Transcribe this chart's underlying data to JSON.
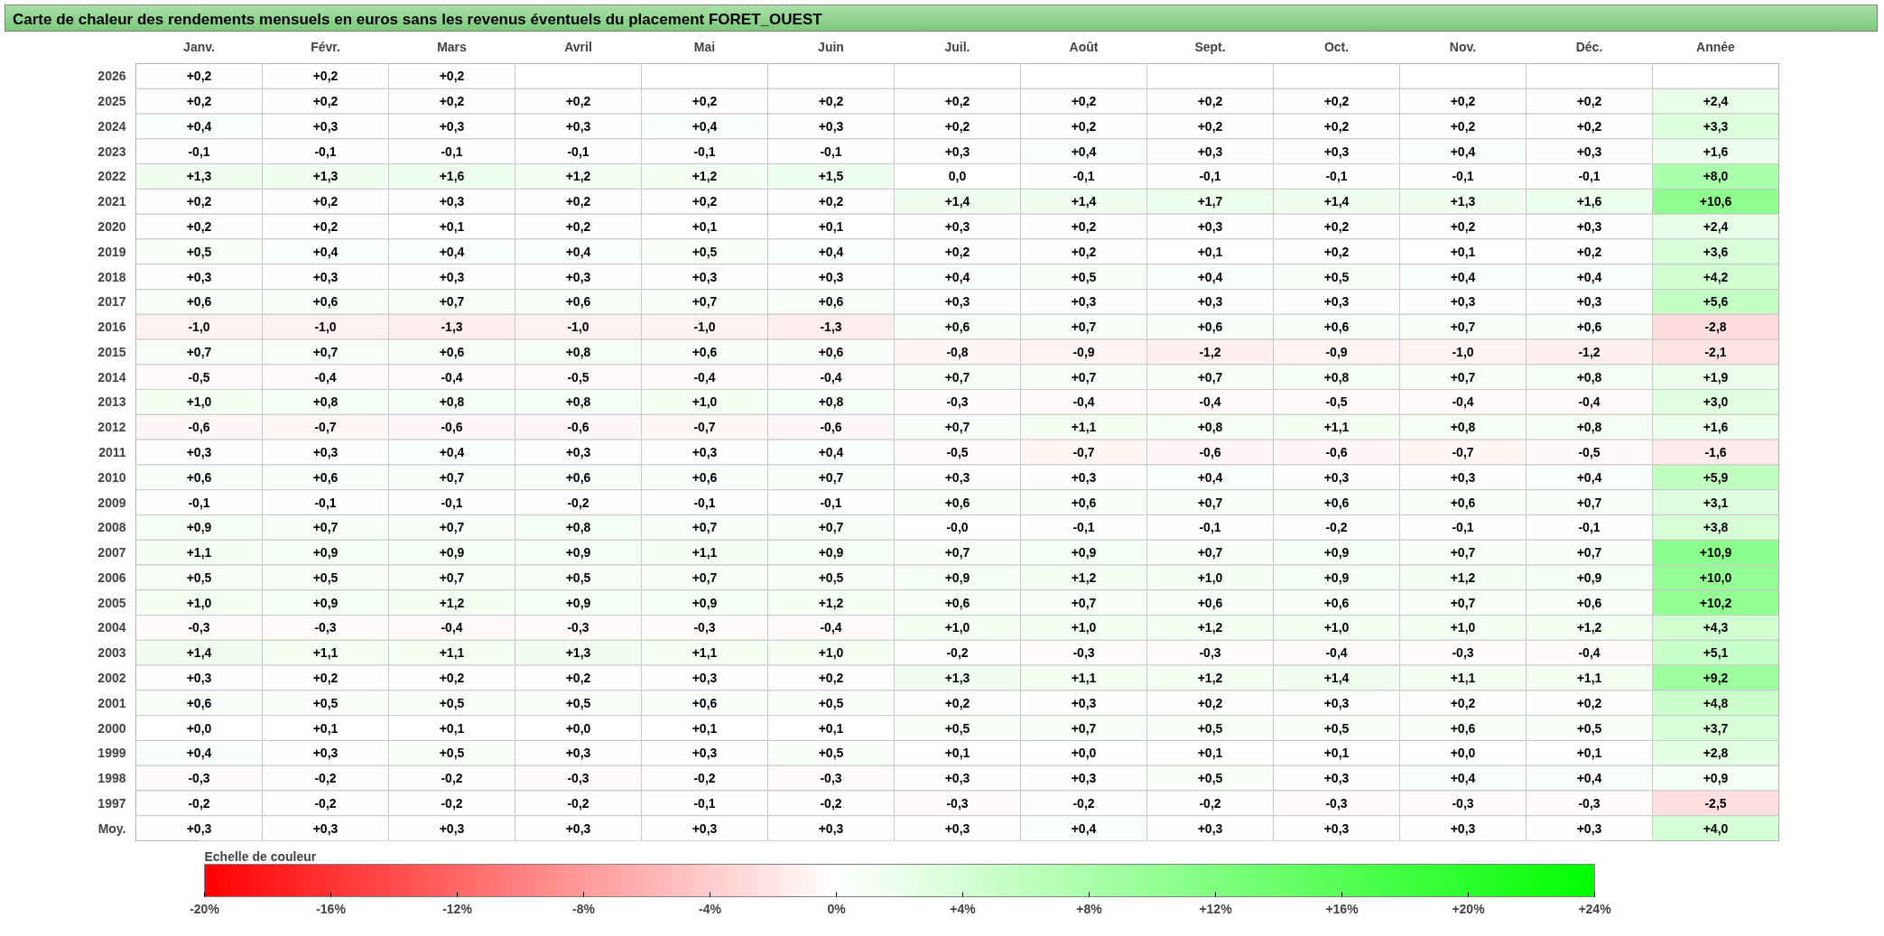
{
  "chart_data": {
    "type": "heatmap",
    "title": "Carte de chaleur des rendements mensuels en euros sans les revenus éventuels du placement FORET_OUEST",
    "categories": [
      "Janv.",
      "Févr.",
      "Mars",
      "Avril",
      "Mai",
      "Juin",
      "Juil.",
      "Août",
      "Sept.",
      "Oct.",
      "Nov.",
      "Déc.",
      "Année"
    ],
    "y_categories": [
      "2026",
      "2025",
      "2024",
      "2023",
      "2022",
      "2021",
      "2020",
      "2019",
      "2018",
      "2017",
      "2016",
      "2015",
      "2014",
      "2013",
      "2012",
      "2011",
      "2010",
      "2009",
      "2008",
      "2007",
      "2006",
      "2005",
      "2004",
      "2003",
      "2002",
      "2001",
      "2000",
      "1999",
      "1998",
      "1997",
      "Moy."
    ],
    "cells": [
      [
        0.2,
        0.2,
        0.2,
        null,
        null,
        null,
        null,
        null,
        null,
        null,
        null,
        null,
        null
      ],
      [
        0.2,
        0.2,
        0.2,
        0.2,
        0.2,
        0.2,
        0.2,
        0.2,
        0.2,
        0.2,
        0.2,
        0.2,
        2.4
      ],
      [
        0.4,
        0.3,
        0.3,
        0.3,
        0.4,
        0.3,
        0.2,
        0.2,
        0.2,
        0.2,
        0.2,
        0.2,
        3.3
      ],
      [
        -0.1,
        -0.1,
        -0.1,
        -0.1,
        -0.1,
        -0.1,
        0.3,
        0.4,
        0.3,
        0.3,
        0.4,
        0.3,
        1.6
      ],
      [
        1.3,
        1.3,
        1.6,
        1.2,
        1.2,
        1.5,
        0.0,
        -0.1,
        -0.1,
        -0.1,
        -0.1,
        -0.1,
        8.0
      ],
      [
        0.2,
        0.2,
        0.3,
        0.2,
        0.2,
        0.2,
        1.4,
        1.4,
        1.7,
        1.4,
        1.3,
        1.6,
        10.6
      ],
      [
        0.2,
        0.2,
        0.1,
        0.2,
        0.1,
        0.1,
        0.3,
        0.2,
        0.3,
        0.2,
        0.2,
        0.3,
        2.4
      ],
      [
        0.5,
        0.4,
        0.4,
        0.4,
        0.5,
        0.4,
        0.2,
        0.2,
        0.1,
        0.2,
        0.1,
        0.2,
        3.6
      ],
      [
        0.3,
        0.3,
        0.3,
        0.3,
        0.3,
        0.3,
        0.4,
        0.5,
        0.4,
        0.5,
        0.4,
        0.4,
        4.2
      ],
      [
        0.6,
        0.6,
        0.7,
        0.6,
        0.7,
        0.6,
        0.3,
        0.3,
        0.3,
        0.3,
        0.3,
        0.3,
        5.6
      ],
      [
        -1.0,
        -1.0,
        -1.3,
        -1.0,
        -1.0,
        -1.3,
        0.6,
        0.7,
        0.6,
        0.6,
        0.7,
        0.6,
        -2.8
      ],
      [
        0.7,
        0.7,
        0.6,
        0.8,
        0.6,
        0.6,
        -0.8,
        -0.9,
        -1.2,
        -0.9,
        -1.0,
        -1.2,
        -2.1
      ],
      [
        -0.5,
        -0.4,
        -0.4,
        -0.5,
        -0.4,
        -0.4,
        0.7,
        0.7,
        0.7,
        0.8,
        0.7,
        0.8,
        1.9
      ],
      [
        1.0,
        0.8,
        0.8,
        0.8,
        1.0,
        0.8,
        -0.3,
        -0.4,
        -0.4,
        -0.5,
        -0.4,
        -0.4,
        3.0
      ],
      [
        -0.6,
        -0.7,
        -0.6,
        -0.6,
        -0.7,
        -0.6,
        0.7,
        1.1,
        0.8,
        1.1,
        0.8,
        0.8,
        1.6
      ],
      [
        0.3,
        0.3,
        0.4,
        0.3,
        0.3,
        0.4,
        -0.5,
        -0.7,
        -0.6,
        -0.6,
        -0.7,
        -0.5,
        -1.6
      ],
      [
        0.6,
        0.6,
        0.7,
        0.6,
        0.6,
        0.7,
        0.3,
        0.3,
        0.4,
        0.3,
        0.3,
        0.4,
        5.9
      ],
      [
        -0.1,
        -0.1,
        -0.1,
        -0.2,
        -0.1,
        -0.1,
        0.6,
        0.6,
        0.7,
        0.6,
        0.6,
        0.7,
        3.1
      ],
      [
        0.9,
        0.7,
        0.7,
        0.8,
        0.7,
        0.7,
        0.0,
        -0.1,
        -0.1,
        -0.2,
        -0.1,
        -0.1,
        3.8
      ],
      [
        1.1,
        0.9,
        0.9,
        0.9,
        1.1,
        0.9,
        0.7,
        0.9,
        0.7,
        0.9,
        0.7,
        0.7,
        10.9
      ],
      [
        0.5,
        0.5,
        0.7,
        0.5,
        0.7,
        0.5,
        0.9,
        1.2,
        1.0,
        0.9,
        1.2,
        0.9,
        10.0
      ],
      [
        1.0,
        0.9,
        1.2,
        0.9,
        0.9,
        1.2,
        0.6,
        0.7,
        0.6,
        0.6,
        0.7,
        0.6,
        10.2
      ],
      [
        -0.3,
        -0.3,
        -0.4,
        -0.3,
        -0.3,
        -0.4,
        1.0,
        1.0,
        1.2,
        1.0,
        1.0,
        1.2,
        4.3
      ],
      [
        1.4,
        1.1,
        1.1,
        1.3,
        1.1,
        1.0,
        -0.2,
        -0.3,
        -0.3,
        -0.4,
        -0.3,
        -0.4,
        5.1
      ],
      [
        0.3,
        0.2,
        0.2,
        0.2,
        0.3,
        0.2,
        1.3,
        1.1,
        1.2,
        1.4,
        1.1,
        1.1,
        9.2
      ],
      [
        0.6,
        0.5,
        0.5,
        0.5,
        0.6,
        0.5,
        0.2,
        0.3,
        0.2,
        0.3,
        0.2,
        0.2,
        4.8
      ],
      [
        0.0,
        0.1,
        0.1,
        0.0,
        0.1,
        0.1,
        0.5,
        0.7,
        0.5,
        0.5,
        0.6,
        0.5,
        3.7
      ],
      [
        0.4,
        0.3,
        0.5,
        0.3,
        0.3,
        0.5,
        0.1,
        0.0,
        0.1,
        0.1,
        0.0,
        0.1,
        2.8
      ],
      [
        -0.3,
        -0.2,
        -0.2,
        -0.3,
        -0.2,
        -0.3,
        0.3,
        0.3,
        0.5,
        0.3,
        0.4,
        0.4,
        0.9
      ],
      [
        -0.2,
        -0.2,
        -0.2,
        -0.2,
        -0.1,
        -0.2,
        -0.3,
        -0.2,
        -0.2,
        -0.3,
        -0.3,
        -0.3,
        -2.5
      ],
      [
        0.3,
        0.3,
        0.3,
        0.3,
        0.3,
        0.3,
        0.3,
        0.4,
        0.3,
        0.3,
        0.3,
        0.3,
        4.0
      ]
    ],
    "cell_labels": [
      [
        "+0,2",
        "+0,2",
        "+0,2",
        null,
        null,
        null,
        null,
        null,
        null,
        null,
        null,
        null,
        null
      ],
      [
        "+0,2",
        "+0,2",
        "+0,2",
        "+0,2",
        "+0,2",
        "+0,2",
        "+0,2",
        "+0,2",
        "+0,2",
        "+0,2",
        "+0,2",
        "+0,2",
        "+2,4"
      ],
      [
        "+0,4",
        "+0,3",
        "+0,3",
        "+0,3",
        "+0,4",
        "+0,3",
        "+0,2",
        "+0,2",
        "+0,2",
        "+0,2",
        "+0,2",
        "+0,2",
        "+3,3"
      ],
      [
        "-0,1",
        "-0,1",
        "-0,1",
        "-0,1",
        "-0,1",
        "-0,1",
        "+0,3",
        "+0,4",
        "+0,3",
        "+0,3",
        "+0,4",
        "+0,3",
        "+1,6"
      ],
      [
        "+1,3",
        "+1,3",
        "+1,6",
        "+1,2",
        "+1,2",
        "+1,5",
        "0,0",
        "-0,1",
        "-0,1",
        "-0,1",
        "-0,1",
        "-0,1",
        "+8,0"
      ],
      [
        "+0,2",
        "+0,2",
        "+0,3",
        "+0,2",
        "+0,2",
        "+0,2",
        "+1,4",
        "+1,4",
        "+1,7",
        "+1,4",
        "+1,3",
        "+1,6",
        "+10,6"
      ],
      [
        "+0,2",
        "+0,2",
        "+0,1",
        "+0,2",
        "+0,1",
        "+0,1",
        "+0,3",
        "+0,2",
        "+0,3",
        "+0,2",
        "+0,2",
        "+0,3",
        "+2,4"
      ],
      [
        "+0,5",
        "+0,4",
        "+0,4",
        "+0,4",
        "+0,5",
        "+0,4",
        "+0,2",
        "+0,2",
        "+0,1",
        "+0,2",
        "+0,1",
        "+0,2",
        "+3,6"
      ],
      [
        "+0,3",
        "+0,3",
        "+0,3",
        "+0,3",
        "+0,3",
        "+0,3",
        "+0,4",
        "+0,5",
        "+0,4",
        "+0,5",
        "+0,4",
        "+0,4",
        "+4,2"
      ],
      [
        "+0,6",
        "+0,6",
        "+0,7",
        "+0,6",
        "+0,7",
        "+0,6",
        "+0,3",
        "+0,3",
        "+0,3",
        "+0,3",
        "+0,3",
        "+0,3",
        "+5,6"
      ],
      [
        "-1,0",
        "-1,0",
        "-1,3",
        "-1,0",
        "-1,0",
        "-1,3",
        "+0,6",
        "+0,7",
        "+0,6",
        "+0,6",
        "+0,7",
        "+0,6",
        "-2,8"
      ],
      [
        "+0,7",
        "+0,7",
        "+0,6",
        "+0,8",
        "+0,6",
        "+0,6",
        "-0,8",
        "-0,9",
        "-1,2",
        "-0,9",
        "-1,0",
        "-1,2",
        "-2,1"
      ],
      [
        "-0,5",
        "-0,4",
        "-0,4",
        "-0,5",
        "-0,4",
        "-0,4",
        "+0,7",
        "+0,7",
        "+0,7",
        "+0,8",
        "+0,7",
        "+0,8",
        "+1,9"
      ],
      [
        "+1,0",
        "+0,8",
        "+0,8",
        "+0,8",
        "+1,0",
        "+0,8",
        "-0,3",
        "-0,4",
        "-0,4",
        "-0,5",
        "-0,4",
        "-0,4",
        "+3,0"
      ],
      [
        "-0,6",
        "-0,7",
        "-0,6",
        "-0,6",
        "-0,7",
        "-0,6",
        "+0,7",
        "+1,1",
        "+0,8",
        "+1,1",
        "+0,8",
        "+0,8",
        "+1,6"
      ],
      [
        "+0,3",
        "+0,3",
        "+0,4",
        "+0,3",
        "+0,3",
        "+0,4",
        "-0,5",
        "-0,7",
        "-0,6",
        "-0,6",
        "-0,7",
        "-0,5",
        "-1,6"
      ],
      [
        "+0,6",
        "+0,6",
        "+0,7",
        "+0,6",
        "+0,6",
        "+0,7",
        "+0,3",
        "+0,3",
        "+0,4",
        "+0,3",
        "+0,3",
        "+0,4",
        "+5,9"
      ],
      [
        "-0,1",
        "-0,1",
        "-0,1",
        "-0,2",
        "-0,1",
        "-0,1",
        "+0,6",
        "+0,6",
        "+0,7",
        "+0,6",
        "+0,6",
        "+0,7",
        "+3,1"
      ],
      [
        "+0,9",
        "+0,7",
        "+0,7",
        "+0,8",
        "+0,7",
        "+0,7",
        "-0,0",
        "-0,1",
        "-0,1",
        "-0,2",
        "-0,1",
        "-0,1",
        "+3,8"
      ],
      [
        "+1,1",
        "+0,9",
        "+0,9",
        "+0,9",
        "+1,1",
        "+0,9",
        "+0,7",
        "+0,9",
        "+0,7",
        "+0,9",
        "+0,7",
        "+0,7",
        "+10,9"
      ],
      [
        "+0,5",
        "+0,5",
        "+0,7",
        "+0,5",
        "+0,7",
        "+0,5",
        "+0,9",
        "+1,2",
        "+1,0",
        "+0,9",
        "+1,2",
        "+0,9",
        "+10,0"
      ],
      [
        "+1,0",
        "+0,9",
        "+1,2",
        "+0,9",
        "+0,9",
        "+1,2",
        "+0,6",
        "+0,7",
        "+0,6",
        "+0,6",
        "+0,7",
        "+0,6",
        "+10,2"
      ],
      [
        "-0,3",
        "-0,3",
        "-0,4",
        "-0,3",
        "-0,3",
        "-0,4",
        "+1,0",
        "+1,0",
        "+1,2",
        "+1,0",
        "+1,0",
        "+1,2",
        "+4,3"
      ],
      [
        "+1,4",
        "+1,1",
        "+1,1",
        "+1,3",
        "+1,1",
        "+1,0",
        "-0,2",
        "-0,3",
        "-0,3",
        "-0,4",
        "-0,3",
        "-0,4",
        "+5,1"
      ],
      [
        "+0,3",
        "+0,2",
        "+0,2",
        "+0,2",
        "+0,3",
        "+0,2",
        "+1,3",
        "+1,1",
        "+1,2",
        "+1,4",
        "+1,1",
        "+1,1",
        "+9,2"
      ],
      [
        "+0,6",
        "+0,5",
        "+0,5",
        "+0,5",
        "+0,6",
        "+0,5",
        "+0,2",
        "+0,3",
        "+0,2",
        "+0,3",
        "+0,2",
        "+0,2",
        "+4,8"
      ],
      [
        "+0,0",
        "+0,1",
        "+0,1",
        "+0,0",
        "+0,1",
        "+0,1",
        "+0,5",
        "+0,7",
        "+0,5",
        "+0,5",
        "+0,6",
        "+0,5",
        "+3,7"
      ],
      [
        "+0,4",
        "+0,3",
        "+0,5",
        "+0,3",
        "+0,3",
        "+0,5",
        "+0,1",
        "+0,0",
        "+0,1",
        "+0,1",
        "+0,0",
        "+0,1",
        "+2,8"
      ],
      [
        "-0,3",
        "-0,2",
        "-0,2",
        "-0,3",
        "-0,2",
        "-0,3",
        "+0,3",
        "+0,3",
        "+0,5",
        "+0,3",
        "+0,4",
        "+0,4",
        "+0,9"
      ],
      [
        "-0,2",
        "-0,2",
        "-0,2",
        "-0,2",
        "-0,1",
        "-0,2",
        "-0,3",
        "-0,2",
        "-0,2",
        "-0,3",
        "-0,3",
        "-0,3",
        "-2,5"
      ],
      [
        "+0,3",
        "+0,3",
        "+0,3",
        "+0,3",
        "+0,3",
        "+0,3",
        "+0,3",
        "+0,4",
        "+0,3",
        "+0,3",
        "+0,3",
        "+0,3",
        "+4,0"
      ]
    ],
    "clim": [
      -20,
      24
    ],
    "cticks": [
      {
        "value": -20,
        "label": "-20%"
      },
      {
        "value": -16,
        "label": "-16%"
      },
      {
        "value": -12,
        "label": "-12%"
      },
      {
        "value": -8,
        "label": "-8%"
      },
      {
        "value": -4,
        "label": "-4%"
      },
      {
        "value": 0,
        "label": "0%"
      },
      {
        "value": 4,
        "label": "+4%"
      },
      {
        "value": 8,
        "label": "+8%"
      },
      {
        "value": 12,
        "label": "+12%"
      },
      {
        "value": 16,
        "label": "+16%"
      },
      {
        "value": 20,
        "label": "+20%"
      },
      {
        "value": 24,
        "label": "+24%"
      }
    ],
    "clabel": "Echelle de couleur"
  }
}
